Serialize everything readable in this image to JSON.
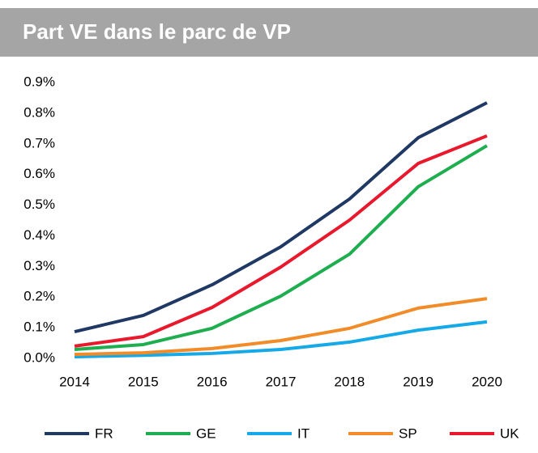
{
  "chart_data": {
    "type": "line",
    "title": "Part VE dans le parc de VP",
    "categories": [
      "2014",
      "2015",
      "2016",
      "2017",
      "2018",
      "2019",
      "2020"
    ],
    "series": [
      {
        "name": "FR",
        "color": "#1f3864",
        "values": [
          0.087,
          0.14,
          0.24,
          0.364,
          0.52,
          0.72,
          0.834
        ]
      },
      {
        "name": "GE",
        "color": "#1fae4f",
        "values": [
          0.029,
          0.045,
          0.098,
          0.203,
          0.34,
          0.56,
          0.694
        ]
      },
      {
        "name": "IT",
        "color": "#16a9e8",
        "values": [
          0.005,
          0.01,
          0.016,
          0.029,
          0.053,
          0.092,
          0.119
        ]
      },
      {
        "name": "SP",
        "color": "#f28c28",
        "values": [
          0.013,
          0.018,
          0.032,
          0.058,
          0.098,
          0.164,
          0.195
        ]
      },
      {
        "name": "UK",
        "color": "#e8192c",
        "values": [
          0.04,
          0.071,
          0.166,
          0.298,
          0.451,
          0.636,
          0.726
        ]
      }
    ],
    "ylim": [
      0,
      0.9
    ],
    "yticks": [
      {
        "value": 0,
        "label": "0.0%"
      },
      {
        "value": 0.1,
        "label": "0.1%"
      },
      {
        "value": 0.2,
        "label": "0.2%"
      },
      {
        "value": 0.3,
        "label": "0.3%"
      },
      {
        "value": 0.4,
        "label": "0.4%"
      },
      {
        "value": 0.5,
        "label": "0.5%"
      },
      {
        "value": 0.6,
        "label": "0.6%"
      },
      {
        "value": 0.7,
        "label": "0.7%"
      },
      {
        "value": 0.8,
        "label": "0.8%"
      },
      {
        "value": 0.9,
        "label": "0.9%"
      }
    ],
    "grid": false,
    "legend": "bottom"
  }
}
